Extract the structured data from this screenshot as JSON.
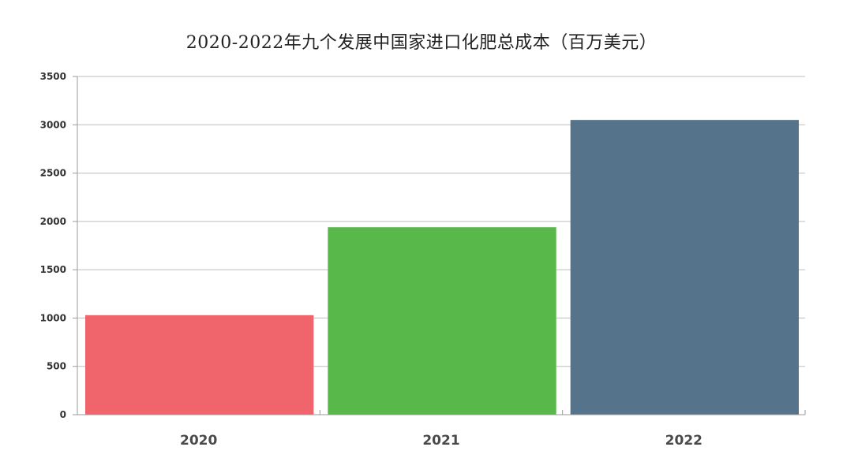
{
  "chart_data": {
    "type": "bar",
    "title": "2020-2022年九个发展中国家进口化肥总成本（百万美元）",
    "xlabel": "",
    "ylabel": "",
    "categories": [
      "2020",
      "2021",
      "2022"
    ],
    "values": [
      1030,
      1940,
      3050
    ],
    "colors": [
      "#EF656B",
      "#58B84A",
      "#56738C"
    ],
    "ylim": [
      0,
      3500
    ],
    "yticks": [
      0,
      500,
      1000,
      1500,
      2000,
      2500,
      3000,
      3500
    ],
    "grid": true,
    "legend": "none"
  }
}
